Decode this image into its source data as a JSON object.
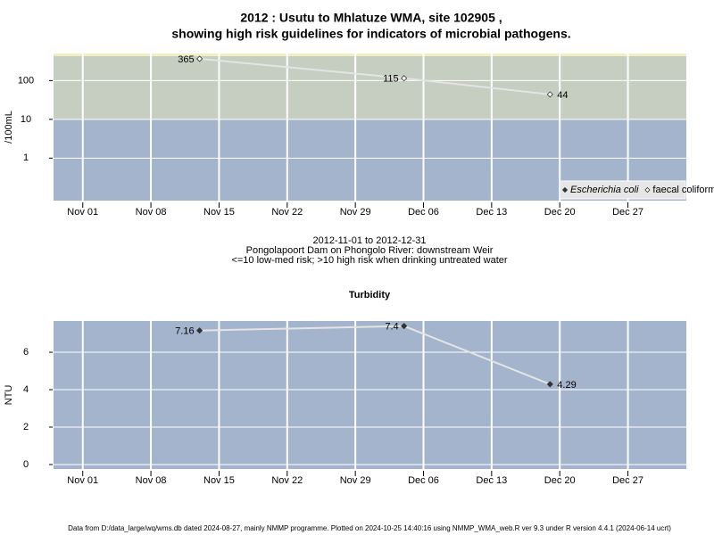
{
  "title": [
    "2012 : Usutu to Mhlatuze WMA, site 102905 ,",
    "showing high risk guidelines for indicators of microbial pathogens."
  ],
  "footer": "Data from D:/data_large/wq/wms.db dated 2024-08-27, mainly NMMP programme. Plotted on 2024-10-25 14:40:16 using NMMP_WMA_web.R ver 9.3 under R version 4.4.1 (2024-06-14 ucrt)",
  "chart_data": [
    {
      "type": "line",
      "ylabel": "/100mL",
      "caption": [
        "2012-11-01 to 2012-12-31",
        "Pongolapoort Dam on Phongolo River: downstream Weir",
        "<=10 low-med risk; >10 high risk when drinking untreated water"
      ],
      "x": [
        "2012-11-13",
        "2012-12-04",
        "2012-12-19"
      ],
      "series": [
        {
          "name": "Escherichia coli",
          "marker": "filled",
          "color": "#333333",
          "font_style": "italic",
          "values": [
            null,
            null,
            null
          ]
        },
        {
          "name": "faecal coliforms",
          "marker": "open",
          "color": "#333333",
          "font_style": "normal",
          "values": [
            365,
            115,
            44
          ]
        }
      ],
      "xlim": [
        "2012-10-29",
        "2013-01-02"
      ],
      "xticks": [
        {
          "value": "2012-11-01",
          "label": "Nov 01"
        },
        {
          "value": "2012-11-08",
          "label": "Nov 08"
        },
        {
          "value": "2012-11-15",
          "label": "Nov 15"
        },
        {
          "value": "2012-11-22",
          "label": "Nov 22"
        },
        {
          "value": "2012-11-29",
          "label": "Nov 29"
        },
        {
          "value": "2012-12-06",
          "label": "Dec 06"
        },
        {
          "value": "2012-12-13",
          "label": "Dec 13"
        },
        {
          "value": "2012-12-20",
          "label": "Dec 20"
        },
        {
          "value": "2012-12-27",
          "label": "Dec 27"
        }
      ],
      "ylim": [
        0.08,
        500
      ],
      "yticks": [
        1,
        10,
        100
      ],
      "log_y": true,
      "threshold": 10,
      "band_colors": [
        "#a3b4cc",
        "#c5cec0"
      ],
      "line_color": "#e4e4e4",
      "grid": true,
      "legend": "bottom-right"
    },
    {
      "type": "line",
      "title": "Turbidity",
      "ylabel": "NTU",
      "x": [
        "2012-11-13",
        "2012-12-04",
        "2012-12-19"
      ],
      "series": [
        {
          "name": "Turbidity",
          "marker": "filled",
          "color": "#333333",
          "values": [
            7.16,
            7.4,
            4.29
          ]
        }
      ],
      "xlim": [
        "2012-10-29",
        "2013-01-02"
      ],
      "xticks": [
        {
          "value": "2012-11-01",
          "label": "Nov 01"
        },
        {
          "value": "2012-11-08",
          "label": "Nov 08"
        },
        {
          "value": "2012-11-15",
          "label": "Nov 15"
        },
        {
          "value": "2012-11-22",
          "label": "Nov 22"
        },
        {
          "value": "2012-11-29",
          "label": "Nov 29"
        },
        {
          "value": "2012-12-06",
          "label": "Dec 06"
        },
        {
          "value": "2012-12-13",
          "label": "Dec 13"
        },
        {
          "value": "2012-12-20",
          "label": "Dec 20"
        },
        {
          "value": "2012-12-27",
          "label": "Dec 27"
        }
      ],
      "ylim": [
        -0.24,
        7.67
      ],
      "yticks": [
        0,
        2,
        4,
        6
      ],
      "log_y": false,
      "background": "#a3b4cc",
      "line_color": "#e4e4e4",
      "grid": true
    }
  ]
}
